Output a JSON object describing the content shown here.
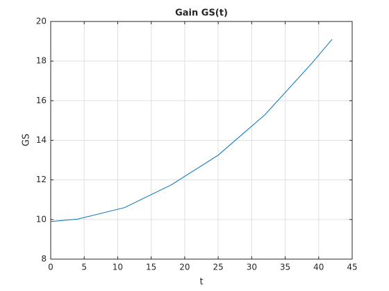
{
  "chart_data": {
    "type": "line",
    "title": "Gain GS(t)",
    "x_label": "t",
    "y_label": "GS",
    "x": [
      0,
      4,
      11,
      18,
      25,
      32,
      39,
      42
    ],
    "series": [
      {
        "color": "#0072bd",
        "values": [
          9.9,
          10.02,
          10.6,
          11.75,
          13.25,
          15.3,
          17.9,
          19.1
        ]
      }
    ],
    "xlim": [
      0,
      45
    ],
    "xticks": [
      0,
      5,
      10,
      15,
      20,
      25,
      30,
      35,
      40,
      45
    ],
    "ylim": [
      8,
      20
    ],
    "yticks": [
      8,
      10,
      12,
      14,
      16,
      18,
      20
    ],
    "grid": true
  }
}
